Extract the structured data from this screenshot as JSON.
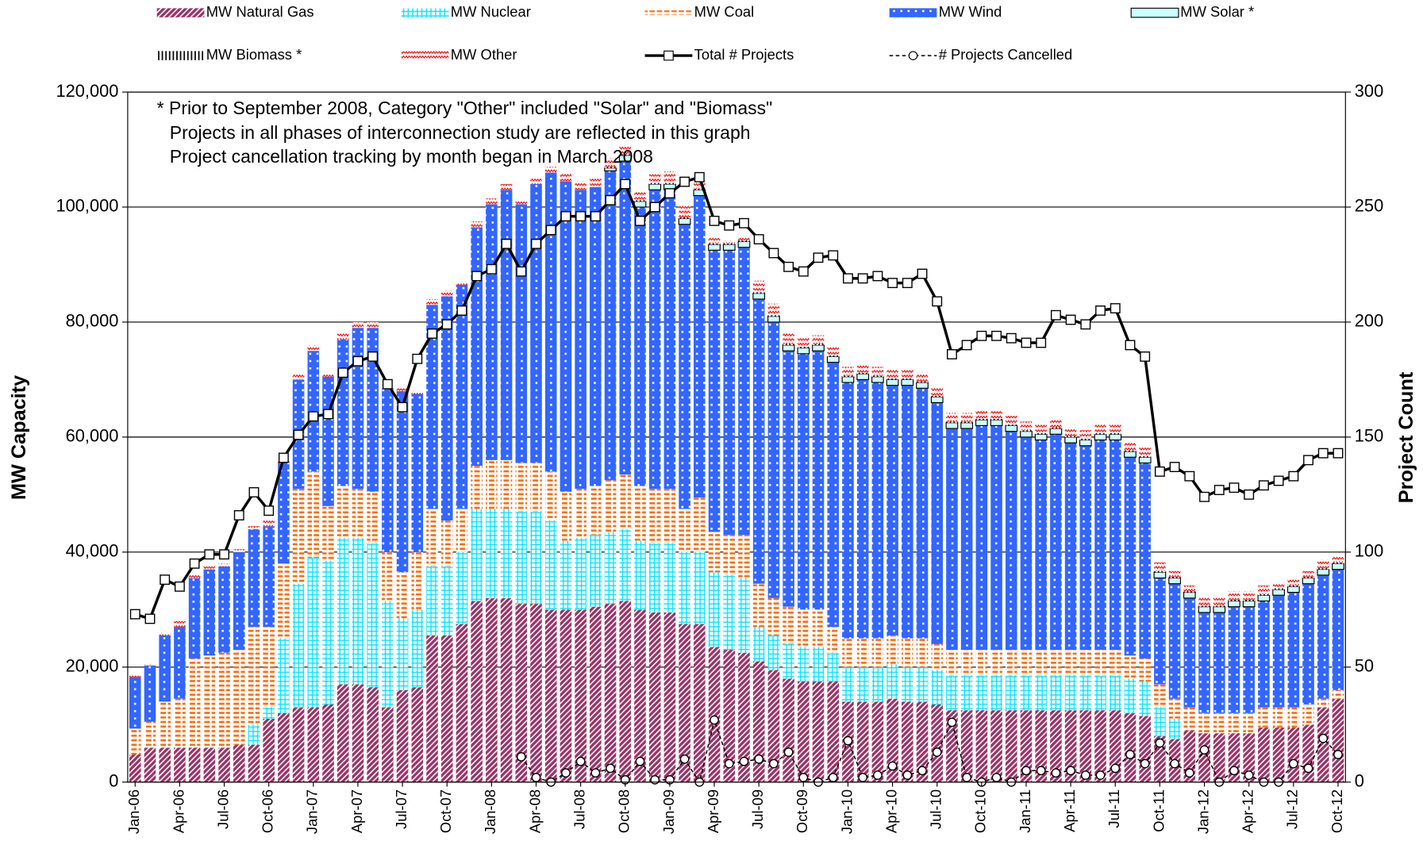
{
  "chart_data": {
    "type": "bar",
    "stacked": true,
    "y_label": "MW Capacity",
    "y2_label": "Project Count",
    "annotations": [
      "* Prior to September 2008, Category \"Other\" included \"Solar\" and \"Biomass\"",
      "Projects in all phases of interconnection study are reflected in this graph",
      "Project cancellation tracking by month began in March 2008"
    ],
    "grid": true,
    "legend": "top",
    "ylim": [
      0,
      120000
    ],
    "yticks": [
      0,
      {
        "value": 20000,
        "label": "20,000"
      },
      {
        "value": 40000,
        "label": "40,000"
      },
      {
        "value": 60000,
        "label": "60,000"
      },
      {
        "value": 80000,
        "label": "80,000"
      },
      {
        "value": 100000,
        "label": "100,000"
      },
      {
        "value": 120000,
        "label": "120,000"
      }
    ],
    "y2lim": [
      0,
      300
    ],
    "y2ticks": [
      0,
      50,
      100,
      150,
      200,
      250,
      300
    ],
    "categories": [
      "Jan-06",
      null,
      null,
      "Apr-06",
      null,
      null,
      "Jul-06",
      null,
      null,
      "Oct-06",
      null,
      null,
      "Jan-07",
      null,
      null,
      "Apr-07",
      null,
      null,
      "Jul-07",
      null,
      null,
      "Oct-07",
      null,
      null,
      "Jan-08",
      null,
      null,
      "Apr-08",
      null,
      null,
      "Jul-08",
      null,
      null,
      "Oct-08",
      null,
      null,
      "Jan-09",
      null,
      null,
      "Apr-09",
      null,
      null,
      "Jul-09",
      null,
      null,
      "Oct-09",
      null,
      null,
      "Jan-10",
      null,
      null,
      "Apr-10",
      null,
      null,
      "Jul-10",
      null,
      null,
      "Oct-10",
      null,
      null,
      "Jan-11",
      null,
      null,
      "Apr-11",
      null,
      null,
      "Jul-11",
      null,
      null,
      "Oct-11",
      null,
      null,
      "Jan-12",
      null,
      null,
      "Apr-12",
      null,
      null,
      "Jul-12",
      null,
      null,
      "Oct-12"
    ],
    "series": [
      {
        "name": "MW Natural Gas",
        "color": "#993366",
        "values": [
          4800,
          6000,
          6000,
          6000,
          6000,
          6000,
          6000,
          6500,
          6500,
          11000,
          12000,
          13000,
          13000,
          13500,
          17000,
          17000,
          16500,
          13000,
          16000,
          16500,
          25500,
          25500,
          27500,
          31500,
          32000,
          32000,
          31000,
          31000,
          30000,
          30000,
          30000,
          30500,
          31000,
          31500,
          30000,
          29500,
          29500,
          27500,
          27500,
          23500,
          23000,
          22500,
          21000,
          19500,
          18000,
          17500,
          17500,
          17500,
          14000,
          14000,
          14000,
          14500,
          14000,
          14000,
          13500,
          12500,
          12500,
          12500,
          12500,
          12500,
          12500,
          12500,
          12500,
          12500,
          12500,
          12500,
          12500,
          12000,
          11500,
          8000,
          7500,
          9000,
          8500,
          8500,
          8500,
          8500,
          9500,
          9500,
          9500,
          10000,
          13000,
          14500
        ]
      },
      {
        "name": "MW Nuclear",
        "color": "#00e5ff",
        "values": [
          0,
          0,
          0,
          0,
          0,
          0,
          0,
          0,
          3500,
          2000,
          13000,
          21500,
          26000,
          25000,
          25500,
          25500,
          25000,
          18500,
          12500,
          13500,
          12000,
          12000,
          12500,
          16000,
          15500,
          15500,
          16000,
          16000,
          15500,
          12000,
          12500,
          12500,
          12500,
          12500,
          12000,
          12000,
          12000,
          12500,
          12500,
          13000,
          13000,
          13000,
          6000,
          6000,
          6000,
          6000,
          6000,
          5000,
          6000,
          6000,
          6000,
          6000,
          6000,
          6000,
          6000,
          6000,
          6000,
          6000,
          6000,
          6000,
          6000,
          6000,
          6000,
          6000,
          6000,
          6000,
          6000,
          6000,
          6000,
          5000,
          3500,
          0,
          0,
          0,
          0,
          0,
          0,
          0,
          0,
          0,
          0,
          0
        ]
      },
      {
        "name": "MW Coal",
        "color": "#ff6600",
        "values": [
          4500,
          4500,
          8000,
          8500,
          15500,
          16000,
          16500,
          16500,
          17000,
          14000,
          13000,
          16500,
          15000,
          9500,
          9000,
          8500,
          9000,
          8500,
          8000,
          10000,
          10000,
          8000,
          7500,
          7500,
          8500,
          8500,
          8500,
          8500,
          8500,
          8500,
          8500,
          8500,
          9000,
          9500,
          9500,
          9500,
          9500,
          7500,
          9500,
          7000,
          7000,
          7500,
          7500,
          6500,
          6500,
          6500,
          6500,
          4500,
          5000,
          5000,
          5000,
          5000,
          5000,
          5000,
          4500,
          4500,
          4500,
          4500,
          4500,
          4500,
          4500,
          4500,
          4500,
          4500,
          4500,
          4500,
          4500,
          4000,
          4000,
          4000,
          3500,
          4000,
          3500,
          3500,
          3500,
          3500,
          3500,
          3500,
          3500,
          3500,
          1500,
          1500
        ]
      },
      {
        "name": "MW Wind",
        "color": "#3366ff",
        "values": [
          9000,
          9800,
          11500,
          12500,
          14000,
          15000,
          15000,
          17000,
          17000,
          17500,
          17500,
          19000,
          21000,
          22500,
          25500,
          28000,
          28500,
          28500,
          31500,
          27500,
          35500,
          39000,
          39000,
          41500,
          44500,
          47000,
          45000,
          48500,
          52000,
          54000,
          52000,
          52000,
          53800,
          54500,
          48500,
          52000,
          52000,
          49500,
          52500,
          49000,
          49500,
          50000,
          49500,
          48000,
          44500,
          44500,
          45000,
          46000,
          44500,
          45000,
          44500,
          43500,
          44000,
          43500,
          42000,
          38500,
          38500,
          39000,
          39000,
          38000,
          37000,
          36500,
          37500,
          36000,
          35500,
          36500,
          36500,
          34500,
          34000,
          18500,
          20000,
          19000,
          17500,
          17500,
          18500,
          18500,
          18500,
          19500,
          20000,
          21000,
          21500,
          21000
        ]
      },
      {
        "name": "MW Solar *",
        "color": "#ccffff",
        "values": [
          0,
          0,
          0,
          0,
          0,
          0,
          0,
          0,
          0,
          0,
          0,
          0,
          0,
          0,
          0,
          0,
          0,
          0,
          0,
          0,
          0,
          0,
          0,
          0,
          0,
          0,
          0,
          0,
          0,
          0,
          0,
          0,
          500,
          1000,
          1000,
          1000,
          1000,
          1000,
          1000,
          1000,
          1000,
          1000,
          1000,
          1000,
          1000,
          1000,
          1000,
          1000,
          1000,
          1000,
          1000,
          1000,
          1000,
          1000,
          1000,
          1000,
          1000,
          1000,
          1000,
          1000,
          1000,
          1000,
          1000,
          1000,
          1000,
          1000,
          1000,
          1000,
          1000,
          1000,
          1000,
          1000,
          1000,
          1000,
          1000,
          1000,
          1000,
          1000,
          1000,
          1000,
          1000,
          1000
        ]
      },
      {
        "name": "MW Biomass *",
        "color": "#000000",
        "values": [
          0,
          0,
          0,
          0,
          0,
          0,
          0,
          0,
          0,
          0,
          0,
          0,
          0,
          0,
          0,
          0,
          0,
          0,
          0,
          0,
          0,
          0,
          0,
          0,
          0,
          0,
          0,
          0,
          0,
          0,
          0,
          0,
          200,
          200,
          200,
          200,
          200,
          200,
          200,
          200,
          200,
          200,
          200,
          200,
          200,
          200,
          200,
          200,
          200,
          200,
          200,
          200,
          200,
          200,
          200,
          200,
          200,
          200,
          200,
          200,
          200,
          200,
          200,
          200,
          200,
          200,
          200,
          200,
          200,
          200,
          200,
          200,
          200,
          200,
          200,
          200,
          200,
          200,
          200,
          200,
          200,
          200
        ]
      },
      {
        "name": "MW Other",
        "color": "#ff0000",
        "values": [
          200,
          200,
          500,
          1000,
          500,
          500,
          500,
          500,
          500,
          1000,
          500,
          1000,
          1000,
          500,
          1000,
          1000,
          1000,
          500,
          500,
          500,
          1000,
          1000,
          500,
          1000,
          1000,
          1000,
          500,
          1000,
          1000,
          1500,
          1500,
          1500,
          1500,
          1500,
          1500,
          1500,
          2000,
          2000,
          1500,
          1000,
          500,
          500,
          2000,
          2000,
          2000,
          1500,
          1500,
          1500,
          1500,
          1500,
          1500,
          1500,
          1500,
          1500,
          1500,
          1500,
          1500,
          1500,
          1500,
          1500,
          1500,
          1500,
          1500,
          1500,
          1500,
          1500,
          1500,
          1500,
          1500,
          1500,
          1000,
          1000,
          1500,
          1500,
          1500,
          1500,
          1500,
          1000,
          1000,
          1000,
          1500,
          1000
        ]
      },
      {
        "name": "Total # Projects",
        "type": "line",
        "axis": "y2",
        "color": "#000000",
        "values": [
          73,
          71,
          88,
          85,
          95,
          99,
          99,
          116,
          126,
          118,
          141,
          151,
          159,
          160,
          178,
          183,
          185,
          173,
          163,
          184,
          195,
          199,
          205,
          220,
          223,
          234,
          222,
          234,
          240,
          246,
          246,
          246,
          253,
          260,
          244,
          250,
          256,
          261,
          263,
          244,
          242,
          243,
          236,
          230,
          224,
          222,
          228,
          229,
          219,
          219,
          220,
          217,
          217,
          221,
          209,
          186,
          190,
          194,
          194,
          193,
          191,
          191,
          203,
          201,
          199,
          205,
          206,
          190,
          185,
          135,
          137,
          133,
          124,
          127,
          128,
          125,
          129,
          131,
          133,
          140,
          143,
          143
        ]
      },
      {
        "name": "# Projects Cancelled",
        "type": "line",
        "axis": "y2",
        "color": "#000000",
        "values": [
          null,
          null,
          null,
          null,
          null,
          null,
          null,
          null,
          null,
          null,
          null,
          null,
          null,
          null,
          null,
          null,
          null,
          null,
          null,
          null,
          null,
          null,
          null,
          null,
          null,
          null,
          11,
          2,
          0,
          4,
          9,
          4,
          6,
          1,
          9,
          1,
          1,
          10,
          0,
          27,
          8,
          9,
          10,
          8,
          13,
          2,
          0,
          2,
          18,
          2,
          3,
          7,
          3,
          5,
          13,
          26,
          2,
          0,
          2,
          0,
          5,
          5,
          4,
          5,
          3,
          3,
          6,
          12,
          8,
          17,
          8,
          4,
          14,
          0,
          5,
          3,
          0,
          0,
          8,
          6,
          19,
          12
        ]
      }
    ]
  }
}
